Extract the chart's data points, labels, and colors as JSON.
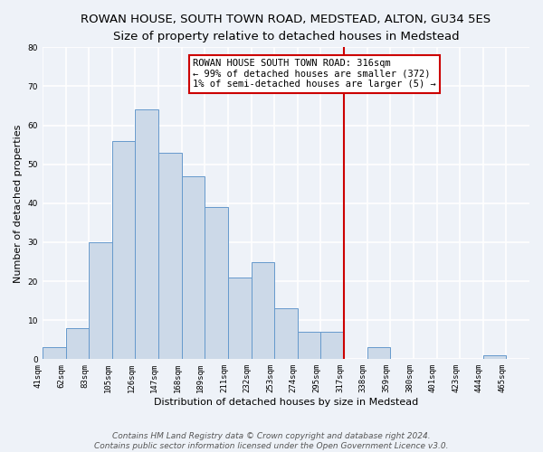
{
  "title": "ROWAN HOUSE, SOUTH TOWN ROAD, MEDSTEAD, ALTON, GU34 5ES",
  "subtitle": "Size of property relative to detached houses in Medstead",
  "xlabel": "Distribution of detached houses by size in Medstead",
  "ylabel": "Number of detached properties",
  "bin_labels": [
    "41sqm",
    "62sqm",
    "83sqm",
    "105sqm",
    "126sqm",
    "147sqm",
    "168sqm",
    "189sqm",
    "211sqm",
    "232sqm",
    "253sqm",
    "274sqm",
    "295sqm",
    "317sqm",
    "338sqm",
    "359sqm",
    "380sqm",
    "401sqm",
    "423sqm",
    "444sqm",
    "465sqm"
  ],
  "bar_heights": [
    3,
    8,
    30,
    56,
    64,
    53,
    47,
    39,
    21,
    25,
    13,
    7,
    7,
    0,
    3,
    0,
    0,
    0,
    0,
    1,
    0
  ],
  "bar_color": "#ccd9e8",
  "bar_edge_color": "#6699cc",
  "ylim": [
    0,
    80
  ],
  "yticks": [
    0,
    10,
    20,
    30,
    40,
    50,
    60,
    70,
    80
  ],
  "vline_x_idx": 13,
  "vline_color": "#cc0000",
  "annotation_text": "ROWAN HOUSE SOUTH TOWN ROAD: 316sqm\n← 99% of detached houses are smaller (372)\n1% of semi-detached houses are larger (5) →",
  "footer_line1": "Contains HM Land Registry data © Crown copyright and database right 2024.",
  "footer_line2": "Contains public sector information licensed under the Open Government Licence v3.0.",
  "background_color": "#eef2f8",
  "grid_color": "#ffffff",
  "title_fontsize": 9.5,
  "subtitle_fontsize": 8.5,
  "axis_label_fontsize": 8,
  "tick_fontsize": 6.5,
  "annotation_fontsize": 7.5,
  "footer_fontsize": 6.5
}
